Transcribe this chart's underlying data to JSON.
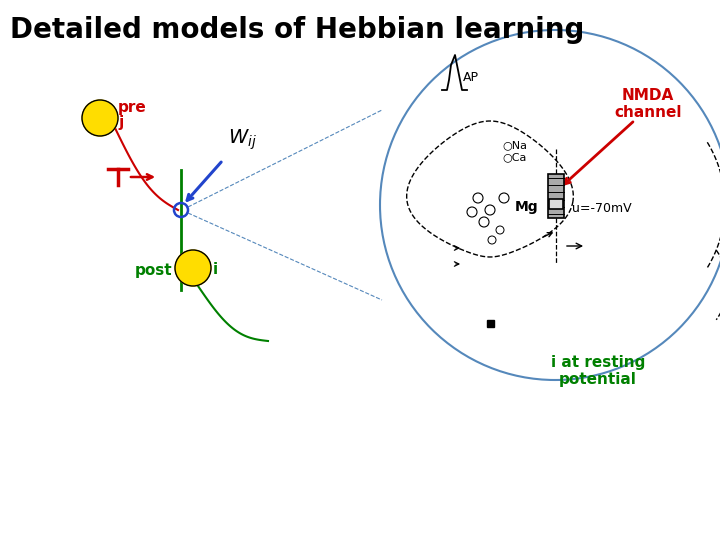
{
  "title": "Detailed models of Hebbian learning",
  "title_fontsize": 20,
  "title_color": "#000000",
  "bg_color": "#ffffff",
  "pre_label": "pre",
  "pre_sub": "j",
  "post_label": "post",
  "post_sub": "i",
  "nmda_label": "NMDA\nchannel",
  "i_resting_label": "i at resting\npotential",
  "ap_label": "AP",
  "na_label": "○Na",
  "ca_label": "○Ca",
  "mg_label": "Mg",
  "u_label": "u=-70mV",
  "red_color": "#cc0000",
  "green_color": "#008000",
  "blue_color": "#2244cc",
  "yellow_color": "#ffdd00",
  "black_color": "#000000",
  "circle_color": "#5588bb"
}
